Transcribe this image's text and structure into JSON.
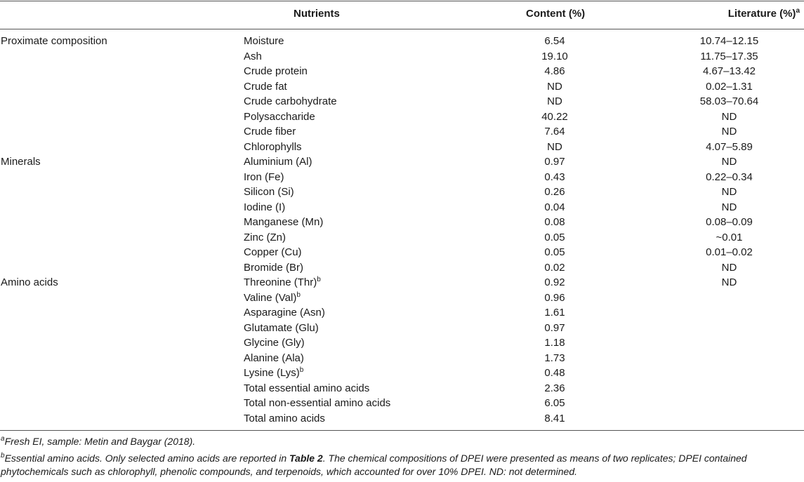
{
  "header": {
    "nutrients": "Nutrients",
    "content": "Content (%)",
    "literature": "Literature (%)",
    "literature_sup": "a"
  },
  "rows": [
    {
      "group": "Proximate composition",
      "nutrient": "Moisture",
      "sup": "",
      "content": "6.54",
      "literature": "10.74–12.15"
    },
    {
      "group": "",
      "nutrient": "Ash",
      "sup": "",
      "content": "19.10",
      "literature": "11.75–17.35"
    },
    {
      "group": "",
      "nutrient": "Crude protein",
      "sup": "",
      "content": "4.86",
      "literature": "4.67–13.42"
    },
    {
      "group": "",
      "nutrient": "Crude fat",
      "sup": "",
      "content": "ND",
      "literature": "0.02–1.31"
    },
    {
      "group": "",
      "nutrient": "Crude carbohydrate",
      "sup": "",
      "content": "ND",
      "literature": "58.03–70.64"
    },
    {
      "group": "",
      "nutrient": "Polysaccharide",
      "sup": "",
      "content": "40.22",
      "literature": "ND"
    },
    {
      "group": "",
      "nutrient": "Crude fiber",
      "sup": "",
      "content": "7.64",
      "literature": "ND"
    },
    {
      "group": "",
      "nutrient": "Chlorophylls",
      "sup": "",
      "content": "ND",
      "literature": "4.07–5.89"
    },
    {
      "group": "Minerals",
      "nutrient": "Aluminium (Al)",
      "sup": "",
      "content": "0.97",
      "literature": "ND"
    },
    {
      "group": "",
      "nutrient": "Iron (Fe)",
      "sup": "",
      "content": "0.43",
      "literature": "0.22–0.34"
    },
    {
      "group": "",
      "nutrient": "Silicon (Si)",
      "sup": "",
      "content": "0.26",
      "literature": "ND"
    },
    {
      "group": "",
      "nutrient": "Iodine (I)",
      "sup": "",
      "content": "0.04",
      "literature": "ND"
    },
    {
      "group": "",
      "nutrient": "Manganese (Mn)",
      "sup": "",
      "content": "0.08",
      "literature": "0.08–0.09"
    },
    {
      "group": "",
      "nutrient": "Zinc (Zn)",
      "sup": "",
      "content": "0.05",
      "literature": "~0.01"
    },
    {
      "group": "",
      "nutrient": "Copper (Cu)",
      "sup": "",
      "content": "0.05",
      "literature": "0.01–0.02"
    },
    {
      "group": "",
      "nutrient": "Bromide (Br)",
      "sup": "",
      "content": "0.02",
      "literature": "ND"
    },
    {
      "group": "Amino acids",
      "nutrient": "Threonine (Thr)",
      "sup": "b",
      "content": "0.92",
      "literature": "ND"
    },
    {
      "group": "",
      "nutrient": "Valine (Val)",
      "sup": "b",
      "content": "0.96",
      "literature": ""
    },
    {
      "group": "",
      "nutrient": "Asparagine (Asn)",
      "sup": "",
      "content": "1.61",
      "literature": ""
    },
    {
      "group": "",
      "nutrient": "Glutamate (Glu)",
      "sup": "",
      "content": "0.97",
      "literature": ""
    },
    {
      "group": "",
      "nutrient": "Glycine (Gly)",
      "sup": "",
      "content": "1.18",
      "literature": ""
    },
    {
      "group": "",
      "nutrient": "Alanine (Ala)",
      "sup": "",
      "content": "1.73",
      "literature": ""
    },
    {
      "group": "",
      "nutrient": "Lysine (Lys)",
      "sup": "b",
      "content": "0.48",
      "literature": ""
    },
    {
      "group": "",
      "nutrient": "Total essential amino acids",
      "sup": "",
      "content": "2.36",
      "literature": ""
    },
    {
      "group": "",
      "nutrient": "Total non-essential amino acids",
      "sup": "",
      "content": "6.05",
      "literature": ""
    },
    {
      "group": "",
      "nutrient": "Total amino acids",
      "sup": "",
      "content": "8.41",
      "literature": ""
    }
  ],
  "footnotes": {
    "a_mark": "a",
    "a_text": "Fresh EI, sample: Metin and Baygar (2018).",
    "b_mark": "b",
    "b_text_1": "Essential amino acids. Only selected amino acids are reported in ",
    "b_table_ref": "Table 2",
    "b_text_2": ". The chemical compositions of DPEI were presented as means of two replicates; DPEI contained phytochemicals such as chlorophyll, phenolic compounds, and terpenoids, which accounted for over 10% DPEI. ND: not determined."
  }
}
